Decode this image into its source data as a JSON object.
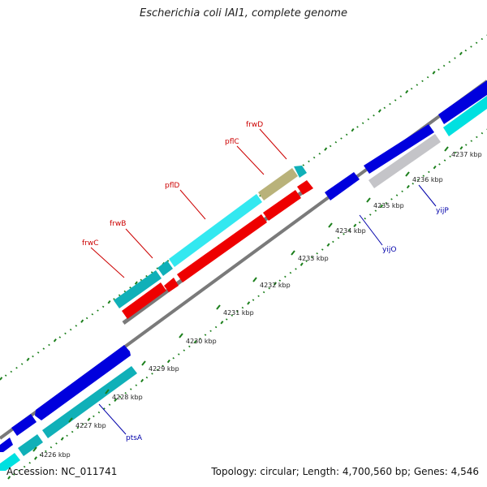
{
  "title": "Escherichia coli IAI1, complete genome",
  "footer": {
    "accession": "Accession: NC_011741",
    "summary": "Topology: circular; Length: 4,700,560 bp; Genes: 4,546"
  },
  "ticks": [
    {
      "label": "4226 kbp",
      "kbp": 4226
    },
    {
      "label": "4227 kbp",
      "kbp": 4227
    },
    {
      "label": "4228 kbp",
      "kbp": 4228
    },
    {
      "label": "4229 kbp",
      "kbp": 4229
    },
    {
      "label": "4230 kbp",
      "kbp": 4230
    },
    {
      "label": "4231 kbp",
      "kbp": 4231
    },
    {
      "label": "4232 kbp",
      "kbp": 4232
    },
    {
      "label": "4233 kbp",
      "kbp": 4233
    },
    {
      "label": "4234 kbp",
      "kbp": 4234
    },
    {
      "label": "4235 kbp",
      "kbp": 4235
    },
    {
      "label": "4236 kbp",
      "kbp": 4236
    },
    {
      "label": "4237 kbp",
      "kbp": 4237
    }
  ],
  "gene_labels": [
    {
      "name": "frwC",
      "color": "#cc0000"
    },
    {
      "name": "frwB",
      "color": "#cc0000"
    },
    {
      "name": "pflD",
      "color": "#cc0000"
    },
    {
      "name": "pflC",
      "color": "#cc0000"
    },
    {
      "name": "frwD",
      "color": "#cc0000"
    },
    {
      "name": "ptsA",
      "color": "#0000aa"
    },
    {
      "name": "yijO",
      "color": "#0000aa"
    },
    {
      "name": "yijP",
      "color": "#0000aa"
    }
  ],
  "colors": {
    "forward_cds": "#0000dd",
    "reverse_cds": "#00e0e0",
    "reverse_cds_dark": "#10b0b8",
    "highlight_cds": "#ee0000",
    "highlight_cds_ref": "#33e8f0",
    "grey_cds": "#c4c4c8",
    "tan_cds": "#b9b27a",
    "backbone": "#808080",
    "gc_ticks": "#1b7f1b"
  }
}
